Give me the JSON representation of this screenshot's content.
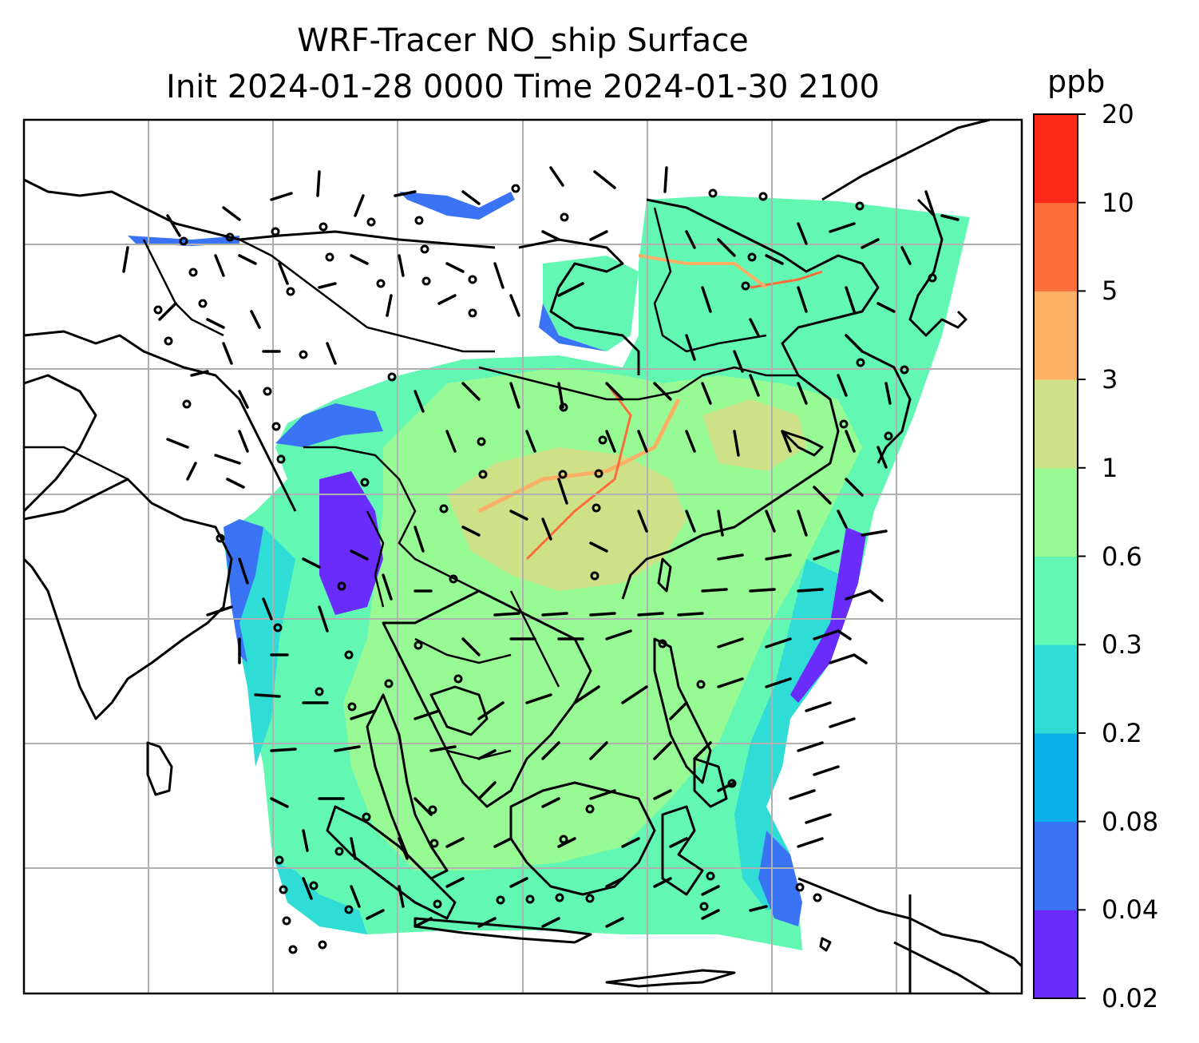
{
  "title": {
    "line1": "WRF-Tracer NO_ship Surface",
    "line2": "Init 2024-01-28 0000 Time 2024-01-30 2100"
  },
  "colorbar": {
    "unit": "ppb",
    "levels": [
      "0.02",
      "0.04",
      "0.08",
      "0.2",
      "0.3",
      "0.6",
      "1",
      "3",
      "5",
      "10",
      "20"
    ],
    "colors": [
      "#6a2cfb",
      "#3a73f3",
      "#0cb0e8",
      "#2fdcd6",
      "#62f8b3",
      "#98fa94",
      "#cfe188",
      "#fbb066",
      "#fc6d3c",
      "#fd2b17"
    ]
  },
  "map": {
    "land_outline_color": "#000000",
    "gridline_color": "#b0b0b0",
    "wind_barb_color": "#000000"
  }
}
